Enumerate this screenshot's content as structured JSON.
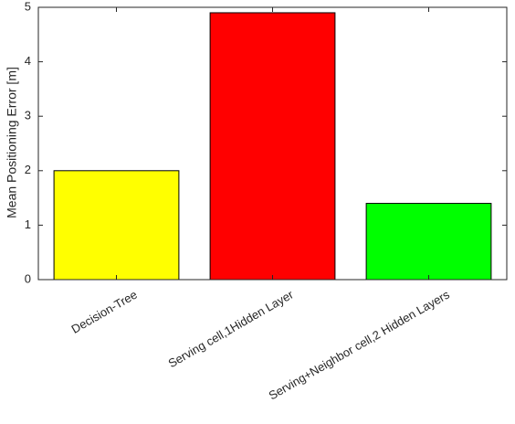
{
  "chart_data": {
    "type": "bar",
    "ylabel": "Mean  Positioning Error [m]",
    "categories": [
      "Decision-Tree",
      "Serving cell,1Hidden Layer",
      "Serving+Neighbor cell,2 Hidden Layers"
    ],
    "values": [
      2.0,
      4.9,
      1.4
    ],
    "colors": [
      "#ffff00",
      "#ff0000",
      "#00ff00"
    ],
    "ylim": [
      0,
      5
    ],
    "yticks": [
      0,
      1,
      2,
      3,
      4,
      5
    ],
    "grid": false
  }
}
